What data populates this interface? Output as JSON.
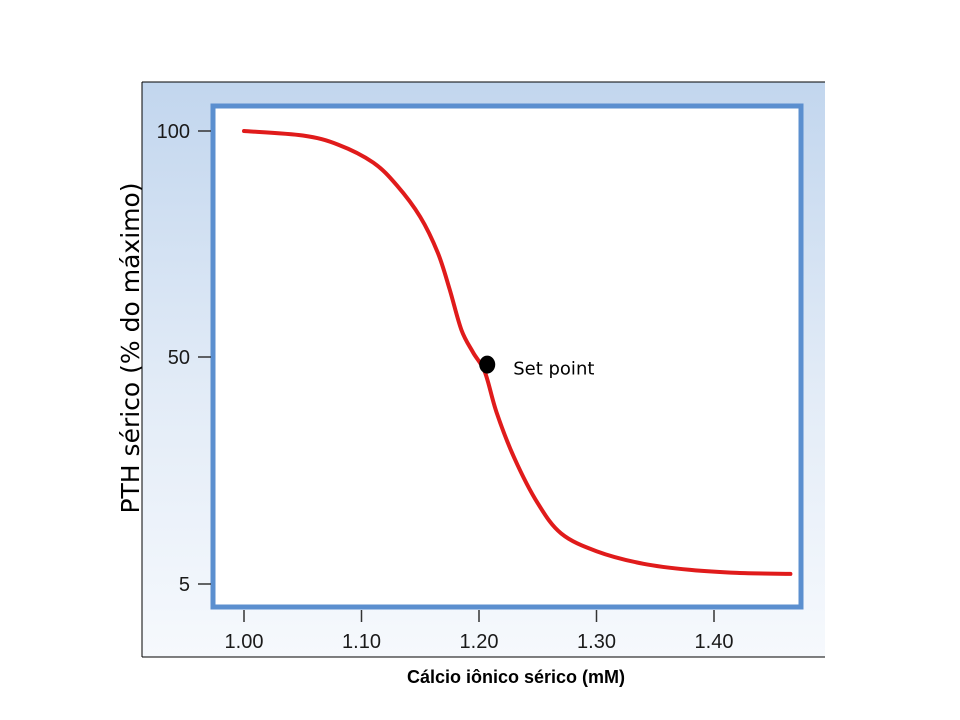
{
  "chart_data": {
    "type": "line",
    "title": "",
    "xlabel": "Cálcio iônico sérico (mM)",
    "ylabel": "PTH sérico (% do máximo)",
    "x_ticks": [
      "1.00",
      "1.10",
      "1.20",
      "1.30",
      "1.40"
    ],
    "y_ticks": [
      "100",
      "50",
      "5"
    ],
    "xlim": [
      0.975,
      1.47
    ],
    "ylim": [
      0,
      100
    ],
    "grid": false,
    "legend": "none",
    "series": [
      {
        "color": "#e01b1b",
        "points": [
          {
            "x": 1.0,
            "y": 100
          },
          {
            "x": 1.05,
            "y": 99
          },
          {
            "x": 1.08,
            "y": 97
          },
          {
            "x": 1.11,
            "y": 93
          },
          {
            "x": 1.13,
            "y": 88
          },
          {
            "x": 1.15,
            "y": 81
          },
          {
            "x": 1.165,
            "y": 73
          },
          {
            "x": 1.175,
            "y": 65
          },
          {
            "x": 1.185,
            "y": 56
          },
          {
            "x": 1.195,
            "y": 51
          },
          {
            "x": 1.205,
            "y": 47
          },
          {
            "x": 1.215,
            "y": 39
          },
          {
            "x": 1.23,
            "y": 30
          },
          {
            "x": 1.25,
            "y": 21
          },
          {
            "x": 1.27,
            "y": 15
          },
          {
            "x": 1.3,
            "y": 11.5
          },
          {
            "x": 1.34,
            "y": 9
          },
          {
            "x": 1.38,
            "y": 7.8
          },
          {
            "x": 1.42,
            "y": 7.2
          },
          {
            "x": 1.465,
            "y": 7
          }
        ]
      }
    ],
    "annotations": [
      {
        "text": "Set point",
        "x": 1.207,
        "y": 48.5
      }
    ]
  },
  "colors": {
    "panel_fill": "#c8daef",
    "plot_fill": "#ffffff",
    "plot_border": "#5b8fcf",
    "axis": "#000000",
    "curve": "#e01b1b",
    "marker": "#000000"
  }
}
